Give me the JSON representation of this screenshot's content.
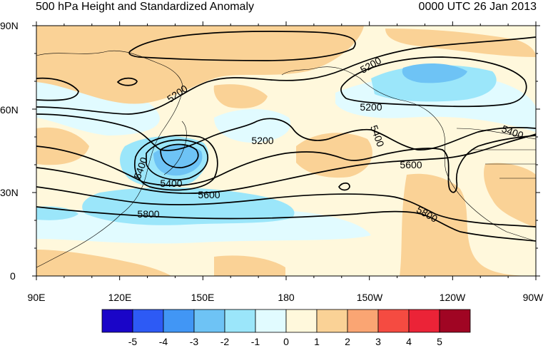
{
  "title_left": "500 hPa Height and Standardized Anomaly",
  "title_right": "0000 UTC 26 Jan 2013",
  "lat_labels": [
    "90N",
    "60N",
    "30N",
    "0"
  ],
  "lon_labels": [
    "90E",
    "120E",
    "150E",
    "180",
    "150W",
    "120W",
    "90W"
  ],
  "contour_labels": [
    "5200",
    "5200",
    "5200",
    "5200",
    "5400",
    "5400",
    "5400",
    "5600",
    "5600",
    "5800",
    "5800",
    "5400"
  ],
  "colorbar": {
    "tick_labels": [
      "-5",
      "-4",
      "-3",
      "-2",
      "-1",
      "0",
      "1",
      "2",
      "3",
      "4",
      "5"
    ],
    "colors": [
      "#1a05c8",
      "#2d5af5",
      "#4196f5",
      "#6ec3f5",
      "#9be6fa",
      "#e1fbff",
      "#fff8dc",
      "#fad296",
      "#faa573",
      "#f54b41",
      "#eb2337",
      "#a00523"
    ]
  },
  "anomaly_colors": {
    "strong_negative": "#4196f5",
    "negative": "#6ec3f5",
    "weak_negative": "#9be6fa",
    "slight_negative": "#e1fbff",
    "neutral": "#fff8dc",
    "positive": "#fad296"
  }
}
